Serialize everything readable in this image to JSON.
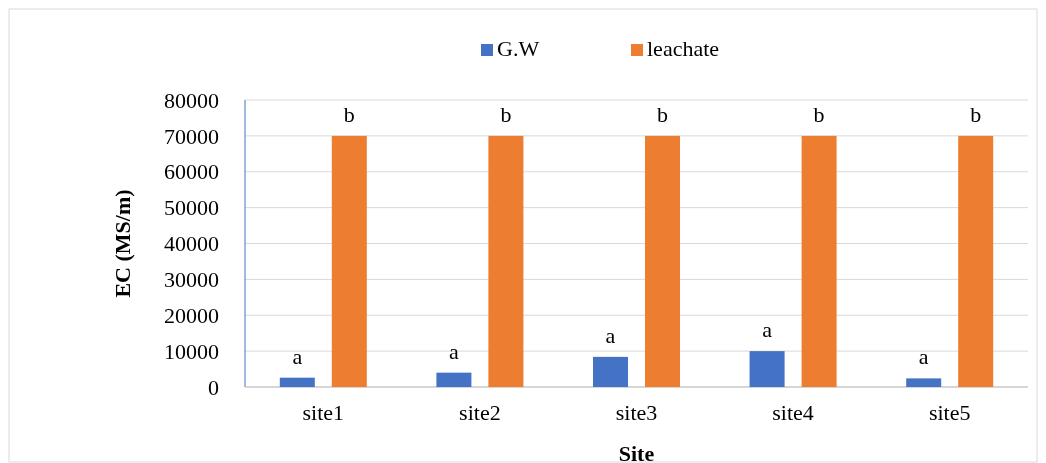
{
  "chart_data": {
    "type": "bar",
    "xlabel": "Site",
    "ylabel": "EC (MS/m)",
    "categories": [
      "site1",
      "site2",
      "site3",
      "site4",
      "site5"
    ],
    "series": [
      {
        "name": "G.W",
        "color": "#4472c4",
        "values": [
          2600,
          4000,
          8400,
          10000,
          2400
        ]
      },
      {
        "name": "leachate",
        "color": "#ed7d31",
        "values": [
          70000,
          70000,
          70000,
          70000,
          70000
        ]
      }
    ],
    "ylim": [
      0,
      80000
    ],
    "yticks": [
      0,
      10000,
      20000,
      30000,
      40000,
      50000,
      60000,
      70000,
      80000
    ],
    "grid": "y",
    "legend": "top",
    "annotations": [
      "a",
      "a",
      "a",
      "a",
      "a",
      "b",
      "b",
      "b",
      "b",
      "b"
    ]
  }
}
